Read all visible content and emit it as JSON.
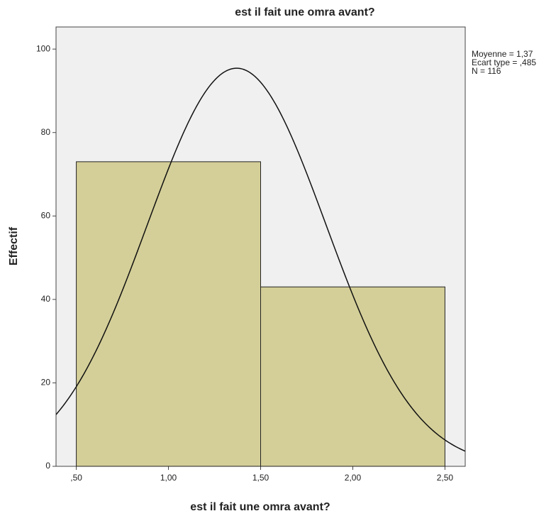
{
  "chart_data": {
    "type": "histogram",
    "title": "est il fait une omra avant?",
    "xlabel": "est il fait une omra avant?",
    "ylabel": "Effectif",
    "bins": [
      0.5,
      1.5,
      2.5
    ],
    "values": [
      73,
      43
    ],
    "color": "#d4cf98",
    "xlim": [
      0.39,
      2.61
    ],
    "ylim": [
      0,
      105.3
    ],
    "xticks": [
      {
        "value": 0.5,
        "label": ",50"
      },
      {
        "value": 1.0,
        "label": "1,00"
      },
      {
        "value": 1.5,
        "label": "1,50"
      },
      {
        "value": 2.0,
        "label": "2,00"
      },
      {
        "value": 2.5,
        "label": "2,50"
      }
    ],
    "yticks": [
      0,
      20,
      40,
      60,
      80,
      100
    ],
    "annotations": [
      {
        "value": 1.37,
        "label": "Moyenne = 1,37"
      },
      {
        "value": 0.485,
        "label": "Ecart type = ,485"
      },
      {
        "value": 116,
        "label": "N = 116"
      }
    ]
  }
}
